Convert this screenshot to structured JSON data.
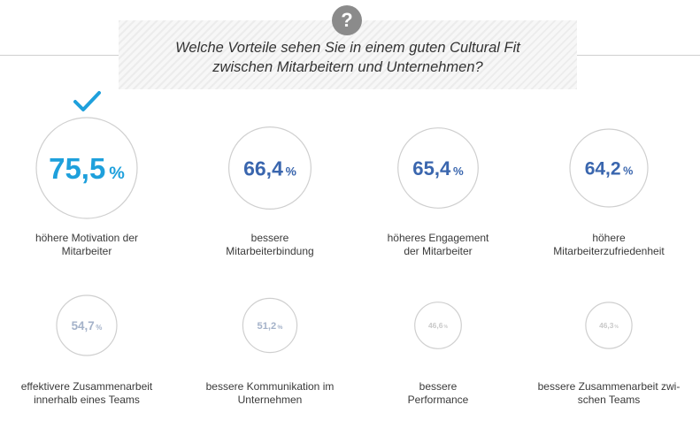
{
  "question": {
    "line1": "Welche Vorteile sehen Sie in einem guten Cultural Fit",
    "line2": "zwischen Mitarbeitern und Unternehmen?",
    "icon": "question-icon",
    "icon_glyph": "?"
  },
  "chart_data": {
    "type": "bar",
    "title": "Welche Vorteile sehen Sie in einem guten Cultural Fit zwischen Mitarbeitern und Unternehmen?",
    "unit": "%",
    "highlight_icon": "checkmark-icon",
    "items": [
      {
        "value_text": "75,5",
        "value": 75.5,
        "label": [
          "höhere Motivation der",
          "Mitarbeiter"
        ],
        "color": "#1ea0dc",
        "highlight": true
      },
      {
        "value_text": "66,4",
        "value": 66.4,
        "label": [
          "bessere",
          "Mitarbeiterbindung"
        ],
        "color": "#3a66ae"
      },
      {
        "value_text": "65,4",
        "value": 65.4,
        "label": [
          "höheres Engagement",
          "der Mitarbeiter"
        ],
        "color": "#3a66ae"
      },
      {
        "value_text": "64,2",
        "value": 64.2,
        "label": [
          "höhere",
          "Mitarbeiterzufriedenheit"
        ],
        "color": "#3a66ae"
      },
      {
        "value_text": "54,7",
        "value": 54.7,
        "label": [
          "effektivere Zusammenarbeit",
          "innerhalb eines Teams"
        ],
        "color": "#a4b2c9"
      },
      {
        "value_text": "51,2",
        "value": 51.2,
        "label": [
          "bessere Kommunikation im",
          "Unternehmen"
        ],
        "color": "#a4b2c9"
      },
      {
        "value_text": "46,6",
        "value": 46.6,
        "label": [
          "bessere",
          "Performance"
        ],
        "color": "#c9c9c9"
      },
      {
        "value_text": "46,3",
        "value": 46.3,
        "label": [
          "bessere Zusammenarbeit zwi-",
          "schen Teams"
        ],
        "color": "#c9c9c9"
      }
    ]
  }
}
